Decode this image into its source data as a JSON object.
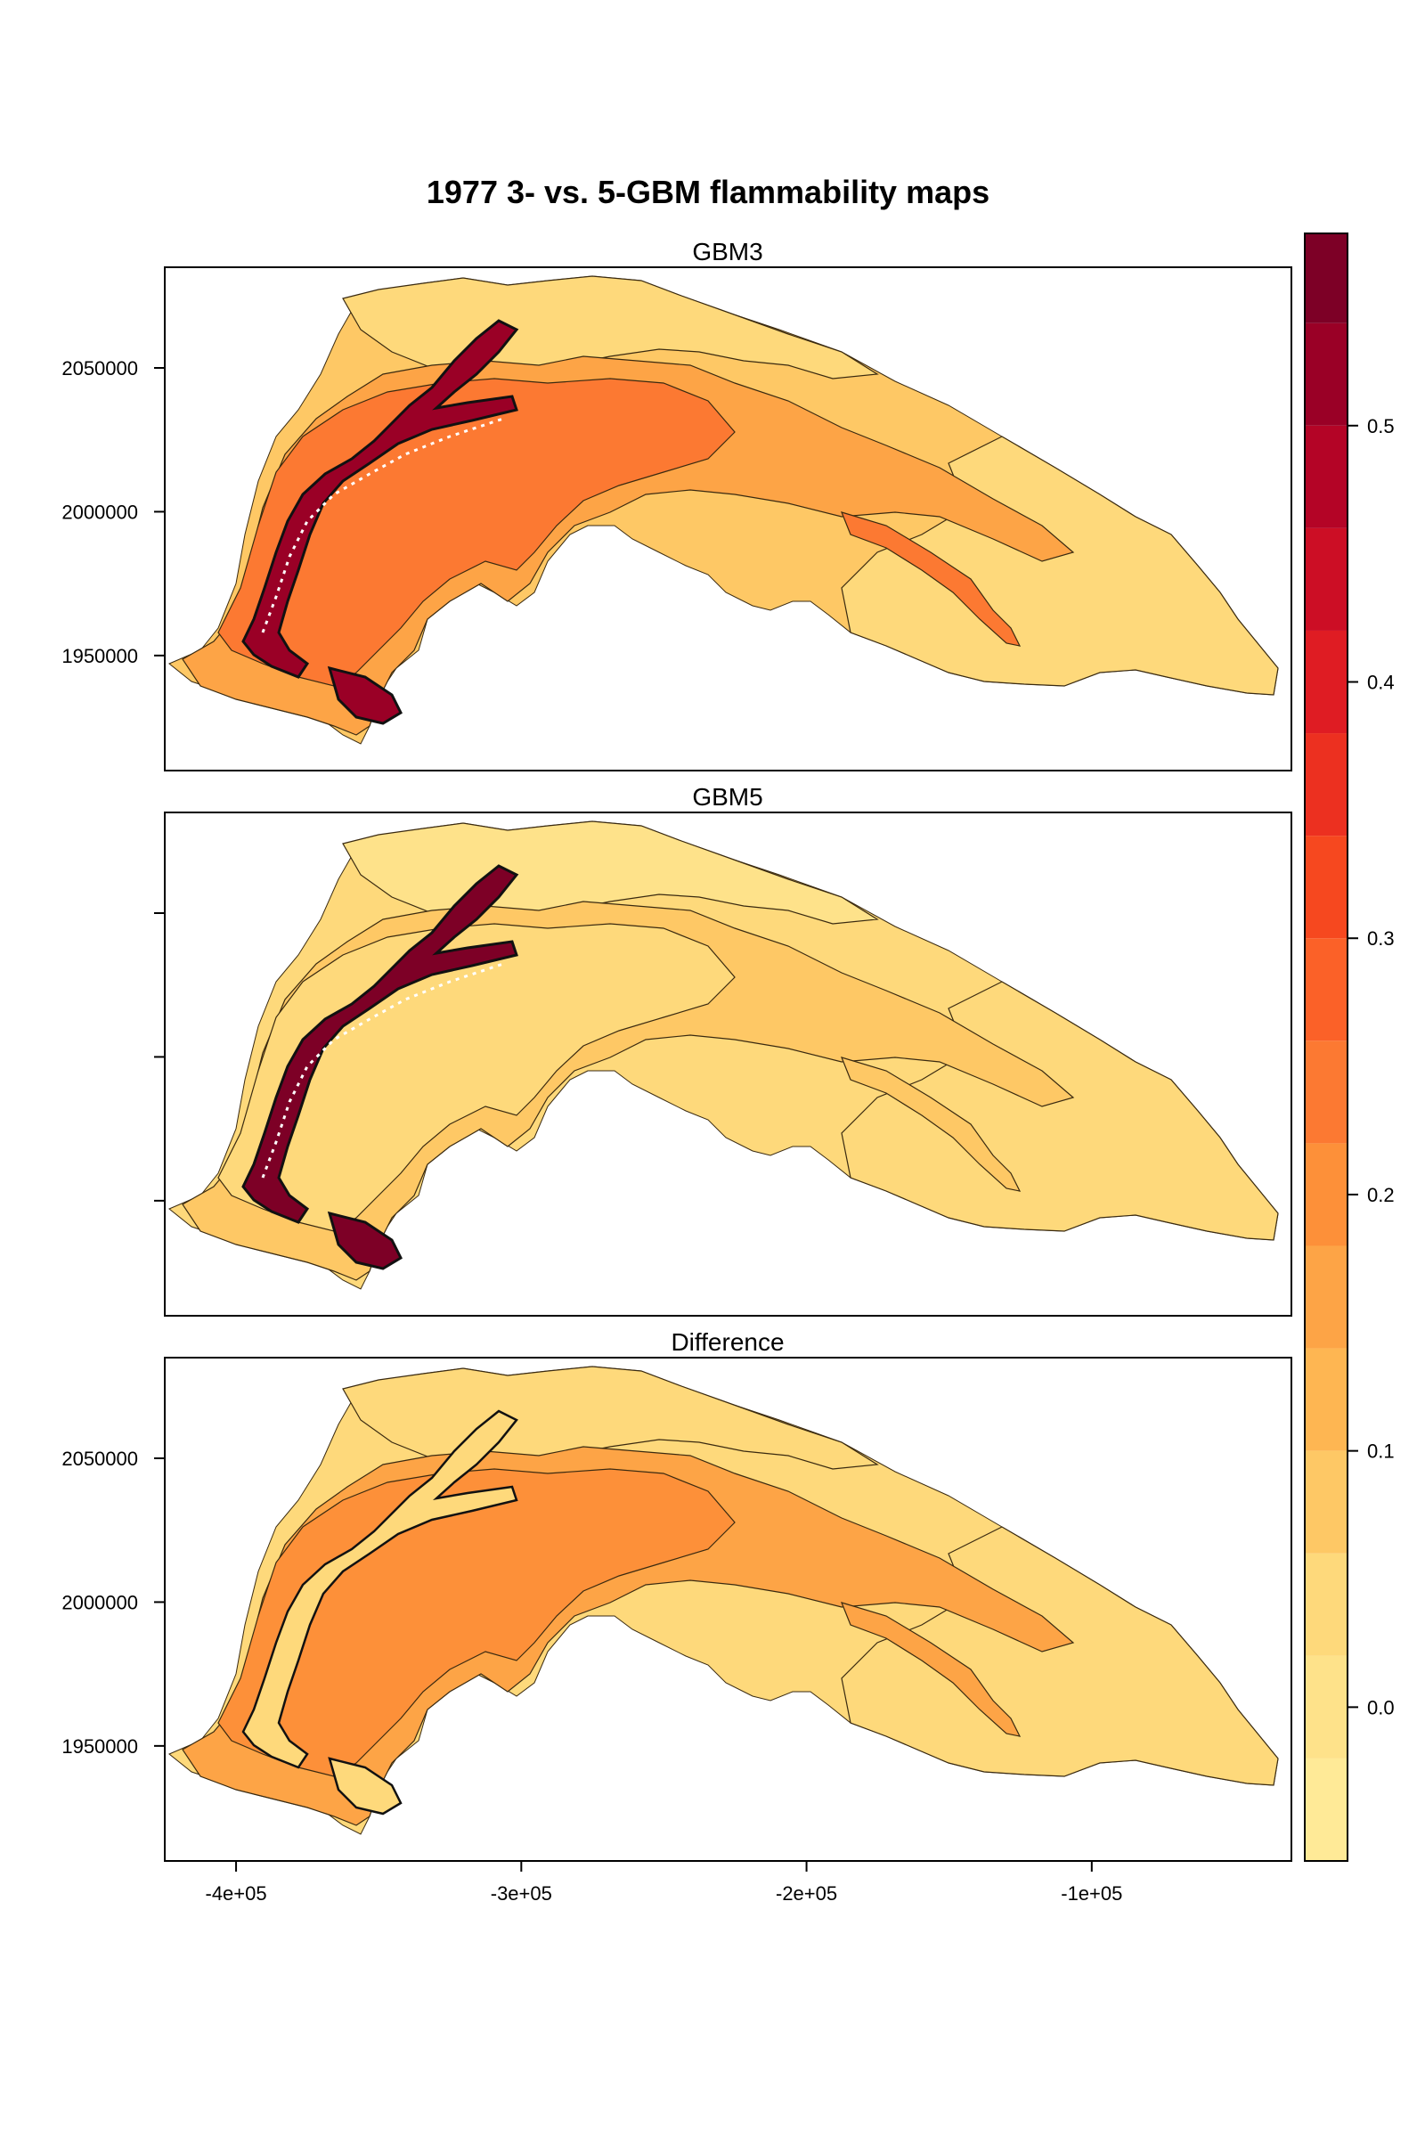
{
  "title": "1977 3- vs. 5-GBM flammability maps",
  "chart_data": {
    "type": "heatmap",
    "title": "1977 3- vs. 5-GBM flammability maps",
    "panels": [
      {
        "label": "GBM3",
        "yticks_shown": true
      },
      {
        "label": "GBM5",
        "yticks_shown": false
      },
      {
        "label": "Difference",
        "yticks_shown": true
      }
    ],
    "x_ticks": [
      {
        "value": -400000,
        "label": "-4e+05"
      },
      {
        "value": -300000,
        "label": "-3e+05"
      },
      {
        "value": -200000,
        "label": "-2e+05"
      },
      {
        "value": -100000,
        "label": "-1e+05"
      }
    ],
    "y_ticks": [
      {
        "value": 1950000,
        "label": "1950000"
      },
      {
        "value": 2000000,
        "label": "2000000"
      },
      {
        "value": 2050000,
        "label": "2050000"
      }
    ],
    "xlim": [
      -425000,
      -30000
    ],
    "ylim": [
      1910000,
      2085000
    ],
    "colorbar": {
      "range": [
        -0.06,
        0.575
      ],
      "ticks": [
        {
          "value": 0.0,
          "label": "0.0"
        },
        {
          "value": 0.1,
          "label": "0.1"
        },
        {
          "value": 0.2,
          "label": "0.2"
        },
        {
          "value": 0.3,
          "label": "0.3"
        },
        {
          "value": 0.4,
          "label": "0.4"
        },
        {
          "value": 0.5,
          "label": "0.5"
        }
      ],
      "breaks": [
        -0.06,
        -0.02,
        0.02,
        0.06,
        0.1,
        0.14,
        0.18,
        0.22,
        0.26,
        0.3,
        0.34,
        0.38,
        0.42,
        0.46,
        0.5,
        0.54,
        0.575
      ],
      "colors": [
        "#FFEA97",
        "#FEE28A",
        "#FED97B",
        "#FEC865",
        "#FEB652",
        "#FDA446",
        "#FD9039",
        "#FC7932",
        "#FB6128",
        "#F6481F",
        "#EC3020",
        "#DF1C23",
        "#CC0E25",
        "#B40426",
        "#9A0026",
        "#7D0026"
      ]
    },
    "region_levels": {
      "GBM3": {
        "outer": 0.06,
        "north": 0.02,
        "mid": 0.14,
        "core": 0.22,
        "valley": 0.5,
        "east": 0.02,
        "ridge": 0.22
      },
      "GBM5": {
        "outer": 0.02,
        "north": -0.02,
        "mid": 0.06,
        "core": 0.02,
        "valley": 0.54,
        "east": 0.02,
        "ridge": 0.06
      },
      "Difference": {
        "outer": 0.02,
        "north": 0.02,
        "mid": 0.14,
        "core": 0.18,
        "valley": 0.02,
        "east": 0.02,
        "ridge": 0.14
      }
    },
    "grid": false,
    "legend": "right (color bar)"
  }
}
